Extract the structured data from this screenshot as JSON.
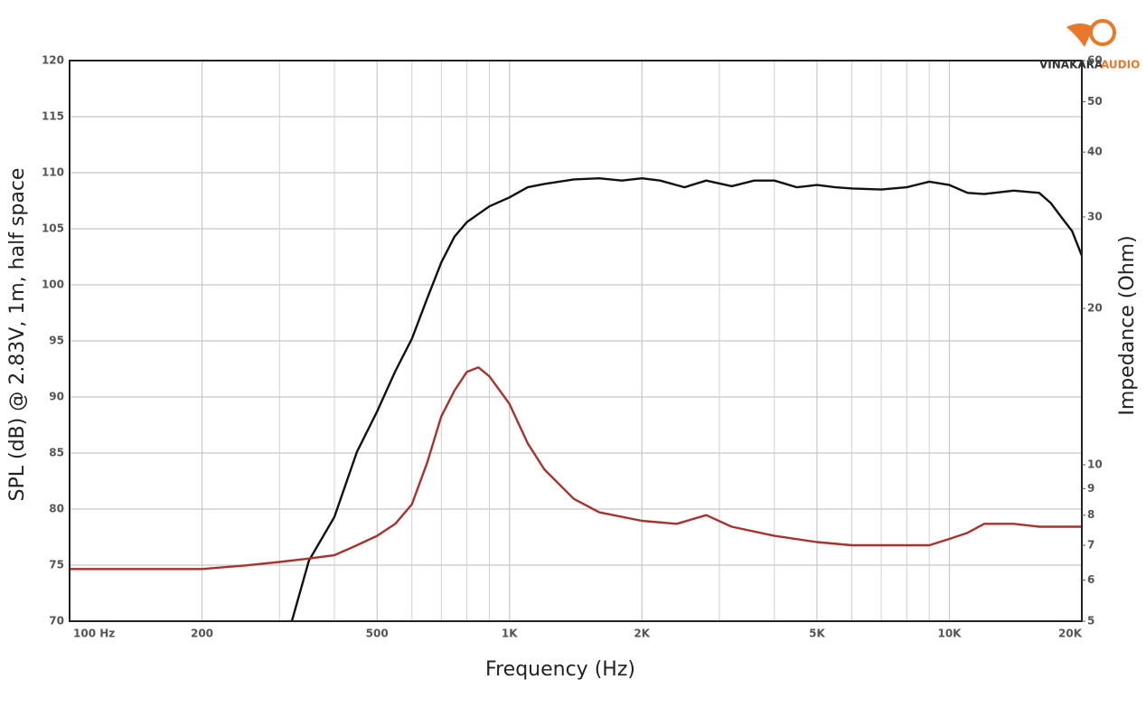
{
  "logo": {
    "brand": "VINAKARA",
    "suffix": "AUDIO"
  },
  "chart_data": {
    "type": "line",
    "xlabel": "Frequency (Hz)",
    "ylabel": "SPL (dB) @ 2.83V, 1m, half space",
    "y2label": "Impedance (Ohm)",
    "xscale": "log",
    "y2scale": "log",
    "grid": true,
    "xlim": [
      100,
      20000
    ],
    "xticks": [
      {
        "value": 100,
        "label": "100  Hz"
      },
      200,
      500,
      {
        "value": 1000,
        "label": "1K"
      },
      {
        "value": 2000,
        "label": "2K"
      },
      {
        "value": 5000,
        "label": "5K"
      },
      {
        "value": 10000,
        "label": "10K"
      },
      {
        "value": 20000,
        "label": "20K"
      }
    ],
    "xminor": [
      300,
      400,
      600,
      700,
      800,
      900,
      3000,
      4000,
      6000,
      7000,
      8000,
      9000
    ],
    "ylim": [
      70,
      120
    ],
    "yticks": [
      70,
      75,
      80,
      85,
      90,
      95,
      100,
      105,
      110,
      115,
      120
    ],
    "y2lim": [
      5,
      60
    ],
    "y2ticks": [
      5,
      6,
      7,
      8,
      9,
      10,
      20,
      30,
      40,
      50,
      60
    ],
    "series": [
      {
        "color": "#111111",
        "x": [
          320,
          350,
          400,
          450,
          500,
          550,
          600,
          650,
          700,
          750,
          800,
          900,
          1000,
          1100,
          1200,
          1400,
          1600,
          1800,
          2000,
          2200,
          2500,
          2800,
          3200,
          3600,
          4000,
          4500,
          5000,
          5500,
          6000,
          7000,
          8000,
          9000,
          10000,
          11000,
          12000,
          14000,
          16000,
          17000,
          18000,
          19000,
          20000
        ],
        "values": [
          70,
          75.4,
          79.3,
          85.1,
          88.7,
          92.3,
          95.2,
          98.8,
          102,
          104.3,
          105.6,
          107,
          107.8,
          108.7,
          109,
          109.4,
          109.5,
          109.3,
          109.5,
          109.3,
          108.7,
          109.3,
          108.8,
          109.3,
          109.3,
          108.7,
          108.9,
          108.7,
          108.6,
          108.5,
          108.7,
          109.2,
          108.9,
          108.2,
          108.1,
          108.4,
          108.2,
          107.3,
          106,
          104.8,
          102.6
        ]
      },
      {
        "color": "#a8322d",
        "axis": "y2",
        "x": [
          100,
          150,
          200,
          250,
          300,
          350,
          400,
          450,
          500,
          550,
          600,
          650,
          700,
          750,
          800,
          850,
          900,
          1000,
          1100,
          1200,
          1400,
          1600,
          2000,
          2400,
          2800,
          3200,
          4000,
          5000,
          6000,
          8000,
          9000,
          10000,
          11000,
          12000,
          14000,
          16000,
          20000
        ],
        "values": [
          6.3,
          6.3,
          6.3,
          6.4,
          6.5,
          6.6,
          6.7,
          7.0,
          7.3,
          7.7,
          8.4,
          10.1,
          12.4,
          13.9,
          15.1,
          15.4,
          14.8,
          13.1,
          11.0,
          9.8,
          8.6,
          8.1,
          7.8,
          7.7,
          8.0,
          7.6,
          7.3,
          7.1,
          7.0,
          7.0,
          7.0,
          7.2,
          7.4,
          7.7,
          7.7,
          7.6,
          7.6
        ]
      }
    ]
  }
}
